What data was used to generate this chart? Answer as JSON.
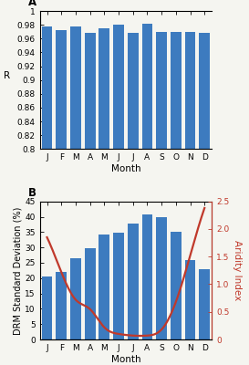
{
  "months": [
    "J",
    "F",
    "M",
    "A",
    "M",
    "J",
    "J",
    "A",
    "S",
    "O",
    "N",
    "D"
  ],
  "r_values": [
    0.977,
    0.972,
    0.977,
    0.968,
    0.975,
    0.98,
    0.968,
    0.981,
    0.969,
    0.97,
    0.969,
    0.968
  ],
  "r_ylim": [
    0.8,
    1.0
  ],
  "r_yticks": [
    0.8,
    0.82,
    0.84,
    0.86,
    0.88,
    0.9,
    0.92,
    0.94,
    0.96,
    0.98,
    1.0
  ],
  "r_ytick_labels": [
    "0.8",
    "0.82",
    "0.84",
    "0.86",
    "0.88",
    "0.9",
    "0.92",
    "0.94",
    "0.96",
    "0.98",
    "1"
  ],
  "drm_values": [
    20.5,
    22.0,
    26.5,
    29.8,
    34.2,
    34.8,
    37.8,
    40.8,
    39.8,
    35.2,
    26.0,
    23.0
  ],
  "drm_ylim": [
    0,
    45
  ],
  "drm_yticks": [
    0,
    5,
    10,
    15,
    20,
    25,
    30,
    35,
    40,
    45
  ],
  "aridity_values": [
    1.85,
    1.22,
    0.72,
    0.55,
    0.22,
    0.1,
    0.07,
    0.07,
    0.18,
    0.68,
    1.52,
    2.38
  ],
  "aridity_ylim": [
    0,
    2.5
  ],
  "aridity_yticks": [
    0,
    0.5,
    1.0,
    1.5,
    2.0,
    2.5
  ],
  "bar_color": "#3d7bbf",
  "line_color": "#c0392b",
  "bg_color": "#f5f5f0",
  "xlabel": "Month",
  "ylabel_a": "R",
  "ylabel_b": "DRM Standard Deviation (%)",
  "ylabel_b2": "Aridity Index",
  "label_a": "A",
  "label_b": "B",
  "tick_fontsize": 6.5,
  "label_fontsize": 7.5,
  "panel_label_fontsize": 8.5
}
